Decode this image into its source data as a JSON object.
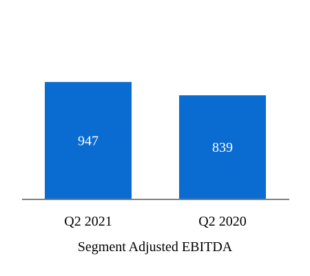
{
  "chart_data": {
    "type": "bar",
    "categories": [
      "Q2 2021",
      "Q2 2020"
    ],
    "values": [
      947,
      839
    ],
    "data_labels": [
      "947",
      "839"
    ],
    "xlabel": "Segment Adjusted EBITDA",
    "ylabel": "",
    "ylim": [
      0,
      1500
    ],
    "grid": false,
    "legend": "none",
    "bar_color": "#0A6BD1",
    "axis_color": "#7F7F7F",
    "label_color": "#FFFFFF"
  }
}
